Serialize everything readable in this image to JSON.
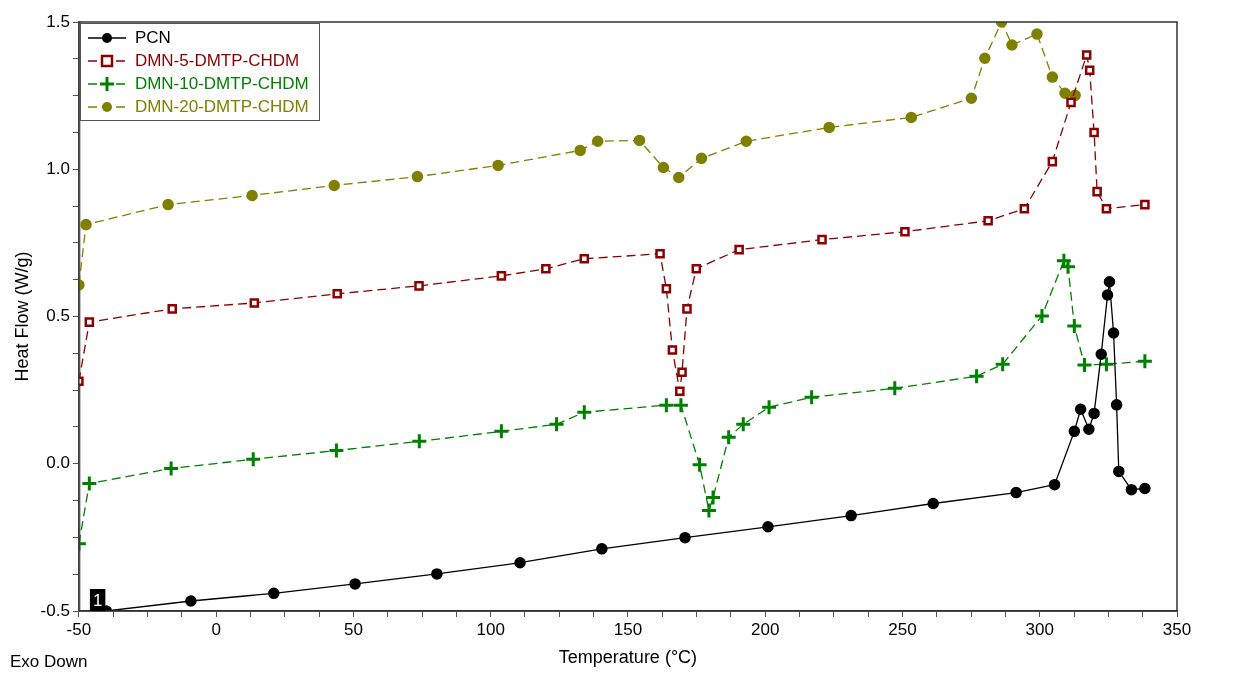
{
  "chart_data": {
    "type": "line",
    "xlabel": "Temperature (°C)",
    "ylabel": "Heat Flow (W/g)",
    "xlim": [
      -50,
      350
    ],
    "xticks": [
      -50,
      {
        "value": -37.5,
        "label": null
      },
      {
        "value": -25,
        "label": null
      },
      {
        "value": -12.5,
        "label": null
      },
      0,
      {
        "value": 12.5,
        "label": null
      },
      {
        "value": 25,
        "label": null
      },
      {
        "value": 37.5,
        "label": null
      },
      50,
      {
        "value": 62.5,
        "label": null
      },
      {
        "value": 75,
        "label": null
      },
      {
        "value": 87.5,
        "label": null
      },
      100,
      {
        "value": 112.5,
        "label": null
      },
      {
        "value": 125,
        "label": null
      },
      {
        "value": 137.5,
        "label": null
      },
      150,
      {
        "value": 162.5,
        "label": null
      },
      {
        "value": 175,
        "label": null
      },
      {
        "value": 187.5,
        "label": null
      },
      200,
      {
        "value": 212.5,
        "label": null
      },
      {
        "value": 225,
        "label": null
      },
      {
        "value": 237.5,
        "label": null
      },
      250,
      {
        "value": 262.5,
        "label": null
      },
      {
        "value": 275,
        "label": null
      },
      {
        "value": 287.5,
        "label": null
      },
      300,
      {
        "value": 312.5,
        "label": null
      },
      {
        "value": 325,
        "label": null
      },
      {
        "value": 337.5,
        "label": null
      },
      350
    ],
    "ylim": [
      -0.5,
      1.5
    ],
    "yticks": [
      -0.5,
      {
        "value": -0.375,
        "label": null
      },
      {
        "value": -0.25,
        "label": null
      },
      {
        "value": -0.125,
        "label": null
      },
      {
        "value": 0,
        "label": "0.0"
      },
      {
        "value": 0.125,
        "label": null
      },
      {
        "value": 0.25,
        "label": null
      },
      {
        "value": 0.375,
        "label": null
      },
      0.5,
      {
        "value": 0.625,
        "label": null
      },
      {
        "value": 0.75,
        "label": null
      },
      {
        "value": 0.875,
        "label": null
      },
      {
        "value": 1,
        "label": "1.0"
      },
      {
        "value": 1.125,
        "label": null
      },
      {
        "value": 1.25,
        "label": null
      },
      {
        "value": 1.375,
        "label": null
      },
      1.5
    ],
    "grid": false,
    "legend": "top left",
    "annotations": [
      "Exo Down",
      {
        "text": "1",
        "x": -40,
        "y": -0.5
      }
    ],
    "series": [
      {
        "name": "PCN",
        "color": "#000000",
        "marker": "circle",
        "line_style": "solid",
        "x": [
          -40,
          -9.2,
          21,
          50.6,
          80.4,
          110.7,
          140.5,
          170.8,
          201,
          231.3,
          261.2,
          291.4,
          305.4,
          312.6,
          314.9,
          317.9,
          319.8,
          322.4,
          324.7,
          325.4,
          326.9,
          328,
          328.8,
          333.4,
          338.3
        ],
        "values": [
          -0.5,
          -0.466,
          -0.44,
          -0.408,
          -0.374,
          -0.336,
          -0.289,
          -0.251,
          -0.214,
          -0.176,
          -0.135,
          -0.098,
          -0.071,
          0.11,
          0.185,
          0.117,
          0.171,
          0.372,
          0.573,
          0.618,
          0.444,
          0.2,
          -0.026,
          -0.088,
          -0.084
        ]
      },
      {
        "name": "DMN-5-DMTP-CHDM",
        "color": "#8b0000",
        "marker": "square",
        "line_style": "dashed",
        "x": [
          -50,
          -46.2,
          -16,
          13.9,
          44.1,
          73.9,
          103.9,
          120.1,
          134.1,
          161.7,
          164,
          166.2,
          168.9,
          169.7,
          171.5,
          174.9,
          190.5,
          220.7,
          250.9,
          281.2,
          294.4,
          304.6,
          311.4,
          317.1,
          318.2,
          319.8,
          320.9,
          324.3,
          338.3
        ],
        "values": [
          0.28,
          0.481,
          0.526,
          0.546,
          0.577,
          0.604,
          0.638,
          0.662,
          0.696,
          0.713,
          0.594,
          0.386,
          0.246,
          0.311,
          0.526,
          0.662,
          0.727,
          0.761,
          0.788,
          0.825,
          0.866,
          1.026,
          1.227,
          1.388,
          1.336,
          1.125,
          0.924,
          0.866,
          0.88
        ]
      },
      {
        "name": "DMN-10-DMTP-CHDM",
        "color": "#008000",
        "marker": "cross",
        "line_style": "dashed",
        "x": [
          -50,
          -46.2,
          -16.4,
          13.5,
          43.8,
          74,
          103.9,
          124,
          134.1,
          164,
          169.3,
          176.1,
          179.5,
          181,
          186.7,
          192,
          201.4,
          216.9,
          247.2,
          277,
          286.5,
          300.8,
          308.8,
          310.3,
          312.6,
          316.3,
          324.3,
          338.3
        ],
        "values": [
          -0.272,
          -0.067,
          -0.016,
          0.015,
          0.045,
          0.076,
          0.11,
          0.134,
          0.175,
          0.199,
          0.199,
          -0.003,
          -0.159,
          -0.115,
          0.09,
          0.134,
          0.192,
          0.226,
          0.256,
          0.297,
          0.338,
          0.502,
          0.689,
          0.669,
          0.468,
          0.335,
          0.338,
          0.348
        ]
      },
      {
        "name": "DMN-20-DMTP-CHDM",
        "color": "#808000",
        "marker": "circle",
        "line_style": "dashed",
        "x": [
          -50,
          -47.4,
          -17.5,
          13.1,
          43,
          73.3,
          102.7,
          132.6,
          139,
          154.2,
          162.9,
          168.5,
          176.8,
          193.1,
          223.3,
          253.2,
          275.1,
          280,
          286.1,
          289.9,
          299,
          304.6,
          309.2,
          312.9
        ],
        "values": [
          0.607,
          0.812,
          0.88,
          0.911,
          0.945,
          0.975,
          1.013,
          1.064,
          1.095,
          1.098,
          1.006,
          0.972,
          1.037,
          1.095,
          1.142,
          1.176,
          1.241,
          1.377,
          1.5,
          1.422,
          1.459,
          1.313,
          1.258,
          1.251
        ]
      }
    ]
  }
}
